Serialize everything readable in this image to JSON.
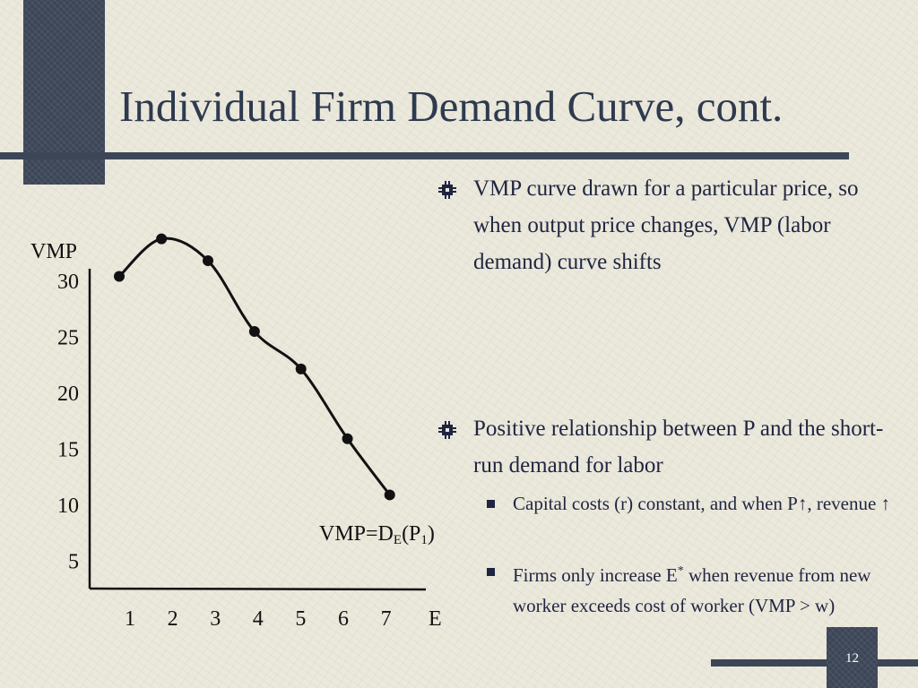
{
  "slide": {
    "title": "Individual Firm Demand Curve, cont.",
    "page_number": "12",
    "colors": {
      "accent": "#3c4657",
      "background": "#ebe8dc",
      "text": "#1f2540"
    }
  },
  "bullets": [
    {
      "text": "VMP curve drawn for a particular price, so when output price changes, VMP (labor demand) curve shifts"
    },
    {
      "text": "Positive relationship between P and the short-run demand for labor"
    }
  ],
  "subbullets": [
    {
      "text": "Capital costs (r) constant, and when P↑, revenue ↑"
    },
    {
      "text_before": "Firms only increase E",
      "sup": "*",
      "text_after": " when revenue from new worker exceeds cost of worker (VMP > w)"
    }
  ],
  "chart_data": {
    "type": "line",
    "ylabel": "VMP",
    "xlabel": "E",
    "x_ticks": [
      "1",
      "2",
      "3",
      "4",
      "5",
      "6",
      "7"
    ],
    "y_ticks": [
      "30",
      "25",
      "20",
      "15",
      "10",
      "5"
    ],
    "series": [
      {
        "name": "VMP=D_E(P_1)",
        "label_parts": {
          "base": "VMP=D",
          "sub1": "E",
          "mid": "(P",
          "sub2": "1",
          "end": ")"
        },
        "x": [
          0.7,
          1.7,
          2.8,
          3.9,
          5,
          6.1,
          7.1
        ],
        "y": [
          30,
          33.6,
          31.5,
          24.7,
          21.1,
          14.4,
          9
        ]
      }
    ],
    "ylim": [
      0,
      34
    ],
    "xlim": [
      0,
      7.5
    ],
    "grid": false,
    "legend": "none"
  }
}
